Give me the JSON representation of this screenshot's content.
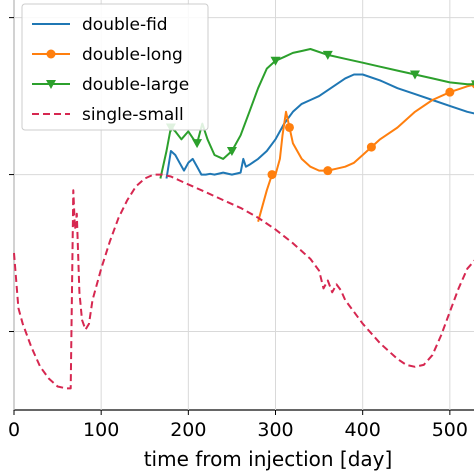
{
  "chart_data": {
    "type": "line",
    "title": "",
    "xlabel": "time from injection [day]",
    "ylabel": "",
    "xlim": [
      0,
      530
    ],
    "ylim": [
      0,
      10.5
    ],
    "grid": true,
    "legend_position": "top-left",
    "x_ticks": [
      0,
      100,
      200,
      300,
      400,
      500
    ],
    "x_tick_labels": [
      "0",
      "100",
      "200",
      "300",
      "400",
      "500"
    ],
    "y_gridlines": [
      2,
      6,
      10
    ],
    "series": [
      {
        "name": "double-fid",
        "color": "#1f77b4",
        "dash": "solid",
        "marker": "none",
        "x": [
          175,
          180,
          185,
          190,
          195,
          200,
          205,
          210,
          215,
          220,
          225,
          230,
          240,
          250,
          260,
          263,
          266,
          270,
          280,
          290,
          300,
          310,
          320,
          330,
          340,
          350,
          360,
          370,
          380,
          390,
          400,
          420,
          440,
          460,
          480,
          500,
          520,
          530
        ],
        "y": [
          5.9,
          6.6,
          6.5,
          6.3,
          6.1,
          6.3,
          6.4,
          6.2,
          6.0,
          6.0,
          6.02,
          6.0,
          6.05,
          6.0,
          6.05,
          6.4,
          6.2,
          6.25,
          6.4,
          6.6,
          6.9,
          7.3,
          7.6,
          7.8,
          7.9,
          8.0,
          8.15,
          8.3,
          8.45,
          8.55,
          8.55,
          8.4,
          8.2,
          8.05,
          7.9,
          7.75,
          7.6,
          7.55
        ]
      },
      {
        "name": "double-long",
        "color": "#ff7f0e",
        "dash": "solid",
        "marker": "circle",
        "x": [
          280,
          290,
          296,
          300,
          305,
          308,
          312,
          316,
          320,
          330,
          340,
          350,
          360,
          370,
          380,
          390,
          400,
          410,
          420,
          440,
          460,
          480,
          500,
          520,
          530
        ],
        "y": [
          4.8,
          5.6,
          6.0,
          6.0,
          6.4,
          7.0,
          7.6,
          7.2,
          6.8,
          6.4,
          6.2,
          6.1,
          6.1,
          6.15,
          6.2,
          6.3,
          6.5,
          6.7,
          6.9,
          7.2,
          7.6,
          7.9,
          8.1,
          8.25,
          8.3
        ]
      },
      {
        "name": "double-large",
        "color": "#2ca02c",
        "dash": "solid",
        "marker": "triangle-down",
        "x": [
          168,
          175,
          180,
          185,
          192,
          200,
          206,
          210,
          216,
          222,
          230,
          240,
          250,
          260,
          270,
          280,
          290,
          300,
          310,
          320,
          330,
          340,
          360,
          380,
          400,
          420,
          440,
          460,
          480,
          500,
          520,
          530
        ],
        "y": [
          5.9,
          6.6,
          7.2,
          7.1,
          6.9,
          7.1,
          6.9,
          6.8,
          7.3,
          6.9,
          6.5,
          6.4,
          6.6,
          7.0,
          7.6,
          8.2,
          8.7,
          8.9,
          9.0,
          9.1,
          9.15,
          9.2,
          9.05,
          8.95,
          8.85,
          8.75,
          8.65,
          8.55,
          8.45,
          8.35,
          8.3,
          8.3
        ]
      },
      {
        "name": "single-small",
        "color": "#d62750",
        "dash": "dashed",
        "marker": "none",
        "x": [
          0,
          5,
          10,
          20,
          30,
          40,
          50,
          60,
          65,
          68,
          70,
          72,
          75,
          78,
          82,
          86,
          90,
          100,
          110,
          120,
          130,
          140,
          150,
          160,
          170,
          180,
          190,
          200,
          220,
          240,
          260,
          280,
          300,
          320,
          340,
          350,
          355,
          360,
          365,
          370,
          375,
          380,
          390,
          400,
          420,
          440,
          450,
          460,
          470,
          480,
          490,
          500,
          510,
          520,
          530
        ],
        "y": [
          4.0,
          2.6,
          2.2,
          1.6,
          1.1,
          0.8,
          0.6,
          0.55,
          0.55,
          5.6,
          4.6,
          5.0,
          3.0,
          2.3,
          2.05,
          2.2,
          2.8,
          3.6,
          4.3,
          4.9,
          5.35,
          5.7,
          5.9,
          6.0,
          6.0,
          5.95,
          5.85,
          5.75,
          5.55,
          5.35,
          5.15,
          4.9,
          4.6,
          4.25,
          3.85,
          3.55,
          3.1,
          3.3,
          3.0,
          3.2,
          3.05,
          2.8,
          2.5,
          2.2,
          1.7,
          1.3,
          1.15,
          1.1,
          1.15,
          1.4,
          1.9,
          2.5,
          3.1,
          3.6,
          3.85
        ]
      }
    ],
    "legend": [
      {
        "label": "double-fid",
        "color": "#1f77b4",
        "dash": "solid",
        "marker": "none"
      },
      {
        "label": "double-long",
        "color": "#ff7f0e",
        "dash": "solid",
        "marker": "circle"
      },
      {
        "label": "double-large",
        "color": "#2ca02c",
        "dash": "solid",
        "marker": "triangle-down"
      },
      {
        "label": "single-small",
        "color": "#d62750",
        "dash": "dashed",
        "marker": "none"
      }
    ]
  }
}
